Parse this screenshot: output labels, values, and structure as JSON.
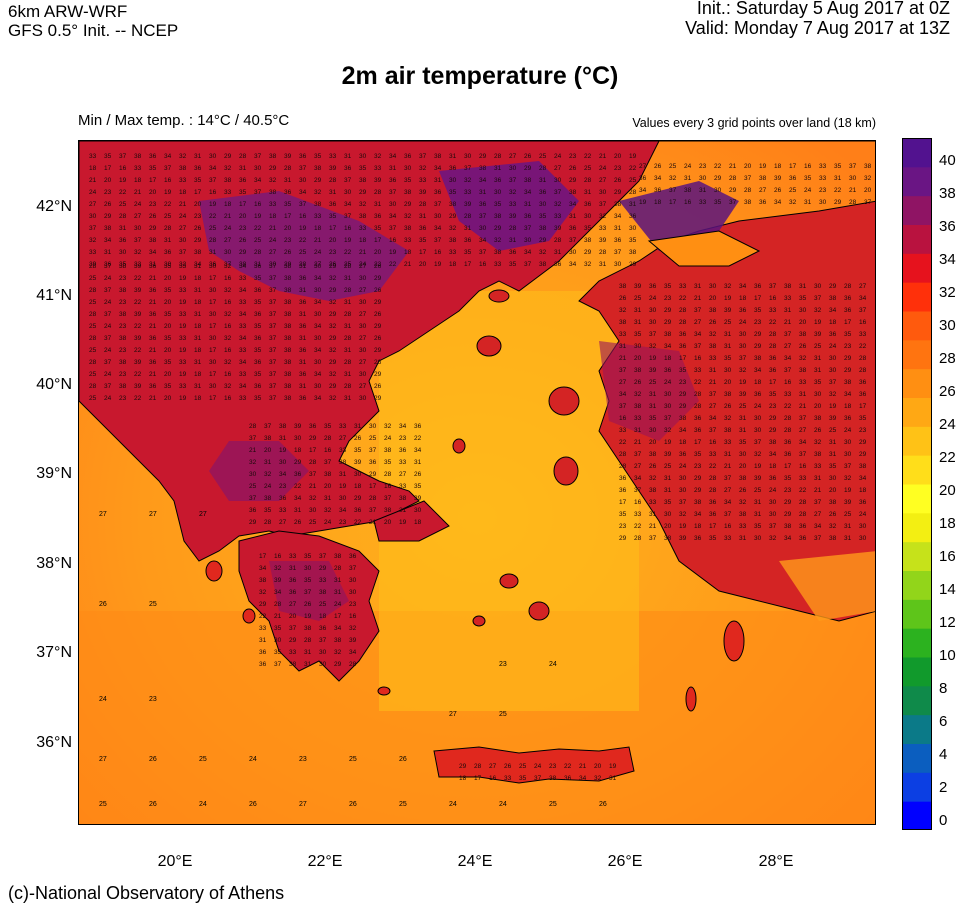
{
  "header": {
    "model": "6km ARW-WRF",
    "init_source": "GFS 0.5° Init. -- NCEP",
    "init_time": "Init.:  Saturday 5 Aug 2017 at 0Z",
    "valid_time": "Valid: Monday 7 Aug 2017 at 13Z"
  },
  "title": "2m air temperature (°C)",
  "minmax": "Min / Max temp. : 14°C / 40.5°C",
  "grid_note": "Values every 3 grid points over land (18 km)",
  "footer": "(c)-National Observatory of Athens",
  "lat_labels": [
    "42°N",
    "41°N",
    "40°N",
    "39°N",
    "38°N",
    "37°N",
    "36°N"
  ],
  "lon_labels": [
    "20°E",
    "22°E",
    "24°E",
    "26°E",
    "28°E"
  ],
  "colorbar": {
    "labels": [
      "40",
      "38",
      "36",
      "34",
      "32",
      "30",
      "28",
      "26",
      "24",
      "22",
      "20",
      "18",
      "16",
      "14",
      "12",
      "10",
      "8",
      "6",
      "4",
      "2",
      "0"
    ],
    "colors": [
      "#0000ff",
      "#0c3fe3",
      "#0b5ebf",
      "#0b7a88",
      "#0f8a4a",
      "#119a2c",
      "#2cb21f",
      "#5ec51a",
      "#92d51a",
      "#c6e21a",
      "#f3ef12",
      "#ffff22",
      "#ffde1a",
      "#ffc216",
      "#ffa814",
      "#ff8f12",
      "#ff7410",
      "#ff5a0d",
      "#ff300a",
      "#e6121d",
      "#b9123f",
      "#8f1464",
      "#6a1584",
      "#52128f"
    ]
  },
  "map_values": {
    "sea": [
      "27",
      "27",
      "27",
      "26",
      "25",
      "24",
      "23",
      "25",
      "26",
      "24",
      "26",
      "27",
      "26",
      "25",
      "24",
      "24",
      "25",
      "26",
      "27",
      "26",
      "25",
      "24",
      "23",
      "25",
      "26",
      "27",
      "25",
      "24",
      "23"
    ],
    "land": [
      "33",
      "35",
      "37",
      "38",
      "36",
      "34",
      "32",
      "31",
      "30",
      "29",
      "28",
      "37",
      "38",
      "39",
      "36",
      "35",
      "33",
      "31",
      "30",
      "32",
      "34",
      "36",
      "37",
      "38",
      "31",
      "30",
      "29",
      "28",
      "27",
      "26",
      "25",
      "24",
      "23",
      "22",
      "21",
      "20",
      "19",
      "18",
      "17",
      "16"
    ]
  }
}
